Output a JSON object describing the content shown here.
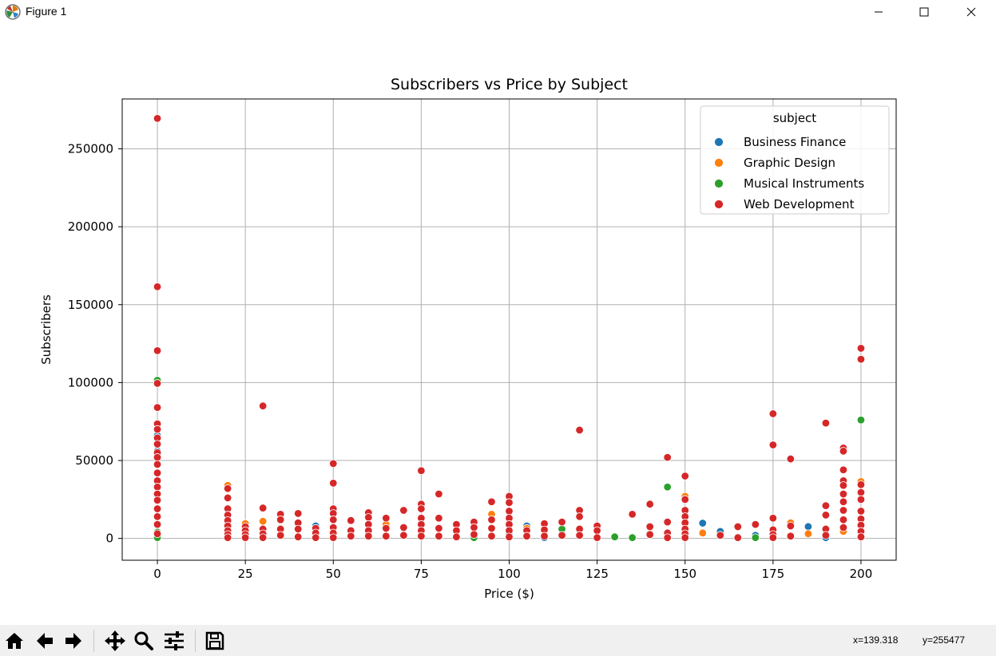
{
  "window": {
    "title": "Figure 1",
    "icon": "matplotlib-icon",
    "controls": [
      "minimize-icon",
      "maximize-icon",
      "close-icon"
    ]
  },
  "toolbar": {
    "tools": [
      "home-icon",
      "back-arrow-icon",
      "forward-arrow-icon",
      "pan-icon",
      "zoom-icon",
      "configure-subplots-icon",
      "save-icon"
    ],
    "coords_x": "x=139.318",
    "coords_y": "y=255477"
  },
  "colors": {
    "Business Finance": "#1f77b4",
    "Graphic Design": "#ff7f0e",
    "Musical Instruments": "#2ca02c",
    "Web Development": "#d62728"
  },
  "chart_data": {
    "type": "scatter",
    "title": "Subscribers vs Price by Subject",
    "xlabel": "Price ($)",
    "ylabel": "Subscribers",
    "xlim": [
      -10,
      210
    ],
    "ylim": [
      -14000,
      282000
    ],
    "xticks": [
      0,
      25,
      50,
      75,
      100,
      125,
      150,
      175,
      200
    ],
    "yticks": [
      0,
      50000,
      100000,
      150000,
      200000,
      250000
    ],
    "xticklabels": [
      "0",
      "25",
      "50",
      "75",
      "100",
      "125",
      "150",
      "175",
      "200"
    ],
    "yticklabels": [
      "0",
      "50000",
      "100000",
      "150000",
      "200000",
      "250000"
    ],
    "grid": true,
    "legend": {
      "title": "subject",
      "location": "top-right"
    },
    "series": [
      {
        "name": "Business Finance",
        "x": [
          0,
          0,
          0,
          45,
          105,
          110,
          155,
          160,
          170,
          185,
          190,
          20,
          100,
          60
        ],
        "y": [
          66000,
          56000,
          3000,
          8000,
          8000,
          500,
          9800,
          4500,
          2000,
          7600,
          500,
          1500,
          2500,
          3500
        ]
      },
      {
        "name": "Graphic Design",
        "x": [
          0,
          0,
          20,
          25,
          30,
          95,
          105,
          150,
          155,
          180,
          195,
          200,
          65,
          185
        ],
        "y": [
          54000,
          9000,
          34000,
          9500,
          11000,
          15500,
          6500,
          27000,
          3500,
          10000,
          4500,
          36500,
          9000,
          3000
        ]
      },
      {
        "name": "Musical Instruments",
        "x": [
          0,
          0,
          90,
          115,
          130,
          135,
          145,
          170,
          200,
          0
        ],
        "y": [
          101500,
          500,
          500,
          6000,
          1000,
          500,
          33000,
          500,
          76000,
          4000
        ]
      },
      {
        "name": "Web Development",
        "x": [
          0,
          0,
          0,
          0,
          0,
          0,
          0,
          0,
          0,
          0,
          0,
          0,
          0,
          0,
          0,
          0,
          0,
          0,
          0,
          0,
          0,
          20,
          20,
          20,
          20,
          20,
          20,
          20,
          20,
          20,
          25,
          25,
          25,
          25,
          30,
          30,
          30,
          30,
          30,
          35,
          35,
          35,
          35,
          40,
          40,
          40,
          40,
          45,
          45,
          45,
          50,
          50,
          50,
          50,
          50,
          50,
          50,
          50,
          55,
          55,
          55,
          60,
          60,
          60,
          60,
          60,
          65,
          65,
          65,
          70,
          70,
          70,
          75,
          75,
          75,
          75,
          75,
          75,
          75,
          80,
          80,
          80,
          80,
          85,
          85,
          85,
          90,
          90,
          90,
          95,
          95,
          95,
          95,
          100,
          100,
          100,
          100,
          100,
          100,
          100,
          105,
          105,
          110,
          110,
          110,
          115,
          115,
          120,
          120,
          120,
          120,
          120,
          125,
          125,
          125,
          135,
          140,
          140,
          140,
          145,
          145,
          145,
          145,
          150,
          150,
          150,
          150,
          150,
          150,
          150,
          150,
          160,
          165,
          165,
          170,
          175,
          175,
          175,
          175,
          175,
          175,
          180,
          180,
          180,
          190,
          190,
          190,
          190,
          190,
          195,
          195,
          195,
          195,
          195,
          195,
          195,
          195,
          195,
          195,
          200,
          200,
          200,
          200,
          200,
          200,
          200,
          200,
          200,
          200
        ],
        "y": [
          269500,
          161500,
          120500,
          99500,
          84000,
          73500,
          70000,
          64500,
          60500,
          55000,
          52000,
          47500,
          42000,
          37000,
          33000,
          28500,
          24500,
          19000,
          14000,
          9000,
          3000,
          32000,
          26000,
          19000,
          15000,
          11500,
          8000,
          5000,
          2500,
          500,
          7500,
          5000,
          2500,
          500,
          85000,
          19500,
          6000,
          3000,
          500,
          15500,
          12000,
          6000,
          2000,
          16000,
          10000,
          6000,
          1000,
          6500,
          3500,
          500,
          48000,
          35500,
          19000,
          16000,
          12000,
          7000,
          3500,
          500,
          11500,
          5000,
          1500,
          16500,
          13500,
          9000,
          5000,
          1500,
          13000,
          6500,
          1500,
          18000,
          7000,
          2000,
          43500,
          22000,
          19000,
          13000,
          9000,
          5000,
          1500,
          28500,
          13000,
          6500,
          1500,
          9000,
          5000,
          1000,
          10500,
          7000,
          2500,
          23500,
          12000,
          6500,
          1500,
          27000,
          23000,
          17500,
          13000,
          9000,
          5000,
          1000,
          5000,
          1500,
          9500,
          5500,
          1500,
          10500,
          2000,
          69500,
          18000,
          14000,
          6000,
          2000,
          8000,
          5000,
          500,
          15500,
          22000,
          7500,
          2500,
          52000,
          10500,
          3500,
          500,
          40000,
          25000,
          18000,
          14000,
          10000,
          6000,
          3000,
          500,
          2000,
          7500,
          500,
          9000,
          80000,
          60000,
          13000,
          5500,
          2500,
          500,
          51000,
          8000,
          1500,
          74000,
          21000,
          15000,
          6000,
          2000,
          58000,
          56000,
          44000,
          37000,
          34000,
          28500,
          23500,
          18000,
          12000,
          7000,
          122000,
          115000,
          34500,
          29500,
          25000,
          17500,
          12500,
          8500,
          4500,
          1000
        ]
      }
    ]
  }
}
